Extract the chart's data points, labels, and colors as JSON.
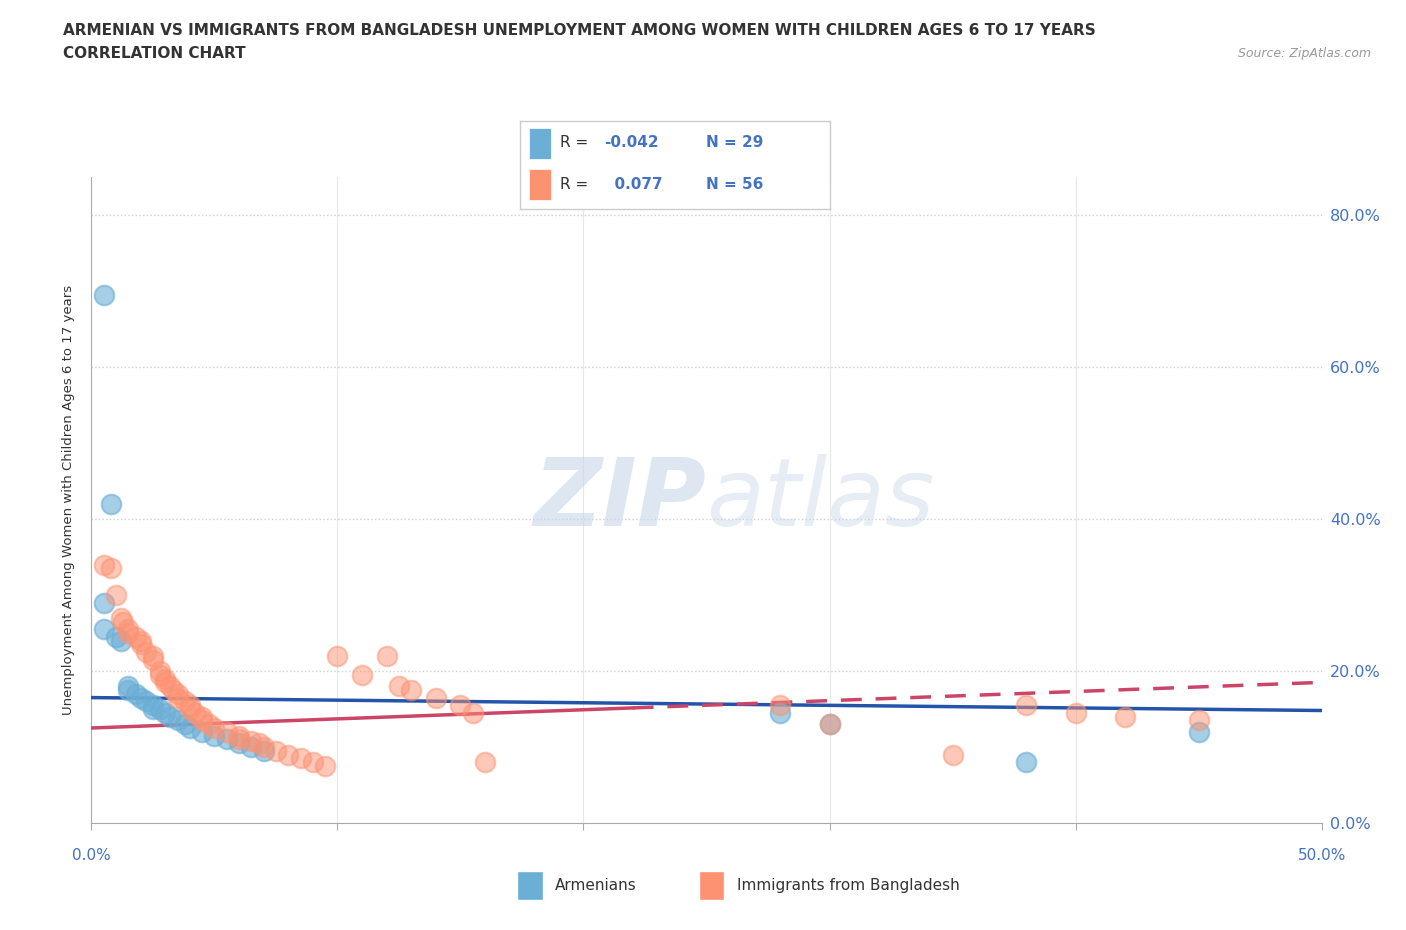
{
  "title_line1": "ARMENIAN VS IMMIGRANTS FROM BANGLADESH UNEMPLOYMENT AMONG WOMEN WITH CHILDREN AGES 6 TO 17 YEARS",
  "title_line2": "CORRELATION CHART",
  "source_text": "Source: ZipAtlas.com",
  "ylabel_label": "Unemployment Among Women with Children Ages 6 to 17 years",
  "xlim": [
    0.0,
    0.5
  ],
  "ylim": [
    0.0,
    0.85
  ],
  "armenian_R": -0.042,
  "armenian_N": 29,
  "bangladesh_R": 0.077,
  "bangladesh_N": 56,
  "armenian_color": "#6baed6",
  "bangladesh_color": "#fc9272",
  "armenian_line_color": "#2255aa",
  "bangladesh_line_color": "#cc4466",
  "armenian_scatter": [
    [
      0.005,
      0.695
    ],
    [
      0.008,
      0.42
    ],
    [
      0.005,
      0.29
    ],
    [
      0.005,
      0.255
    ],
    [
      0.01,
      0.245
    ],
    [
      0.012,
      0.24
    ],
    [
      0.015,
      0.18
    ],
    [
      0.015,
      0.175
    ],
    [
      0.018,
      0.17
    ],
    [
      0.02,
      0.165
    ],
    [
      0.022,
      0.16
    ],
    [
      0.025,
      0.155
    ],
    [
      0.025,
      0.15
    ],
    [
      0.028,
      0.15
    ],
    [
      0.03,
      0.145
    ],
    [
      0.032,
      0.14
    ],
    [
      0.035,
      0.135
    ],
    [
      0.038,
      0.13
    ],
    [
      0.04,
      0.125
    ],
    [
      0.045,
      0.12
    ],
    [
      0.05,
      0.115
    ],
    [
      0.055,
      0.11
    ],
    [
      0.06,
      0.105
    ],
    [
      0.065,
      0.1
    ],
    [
      0.07,
      0.095
    ],
    [
      0.28,
      0.145
    ],
    [
      0.3,
      0.13
    ],
    [
      0.38,
      0.08
    ],
    [
      0.45,
      0.12
    ]
  ],
  "bangladesh_scatter": [
    [
      0.005,
      0.34
    ],
    [
      0.008,
      0.335
    ],
    [
      0.01,
      0.3
    ],
    [
      0.012,
      0.27
    ],
    [
      0.013,
      0.265
    ],
    [
      0.015,
      0.255
    ],
    [
      0.015,
      0.25
    ],
    [
      0.018,
      0.245
    ],
    [
      0.02,
      0.24
    ],
    [
      0.02,
      0.235
    ],
    [
      0.022,
      0.225
    ],
    [
      0.025,
      0.22
    ],
    [
      0.025,
      0.215
    ],
    [
      0.028,
      0.2
    ],
    [
      0.028,
      0.195
    ],
    [
      0.03,
      0.19
    ],
    [
      0.03,
      0.185
    ],
    [
      0.032,
      0.18
    ],
    [
      0.033,
      0.175
    ],
    [
      0.035,
      0.17
    ],
    [
      0.035,
      0.165
    ],
    [
      0.038,
      0.16
    ],
    [
      0.04,
      0.155
    ],
    [
      0.04,
      0.15
    ],
    [
      0.042,
      0.145
    ],
    [
      0.045,
      0.14
    ],
    [
      0.045,
      0.135
    ],
    [
      0.048,
      0.13
    ],
    [
      0.05,
      0.125
    ],
    [
      0.055,
      0.12
    ],
    [
      0.06,
      0.115
    ],
    [
      0.06,
      0.11
    ],
    [
      0.065,
      0.108
    ],
    [
      0.068,
      0.105
    ],
    [
      0.07,
      0.1
    ],
    [
      0.075,
      0.095
    ],
    [
      0.08,
      0.09
    ],
    [
      0.085,
      0.085
    ],
    [
      0.09,
      0.08
    ],
    [
      0.095,
      0.075
    ],
    [
      0.1,
      0.22
    ],
    [
      0.11,
      0.195
    ],
    [
      0.12,
      0.22
    ],
    [
      0.125,
      0.18
    ],
    [
      0.13,
      0.175
    ],
    [
      0.14,
      0.165
    ],
    [
      0.15,
      0.155
    ],
    [
      0.155,
      0.145
    ],
    [
      0.16,
      0.08
    ],
    [
      0.28,
      0.155
    ],
    [
      0.3,
      0.13
    ],
    [
      0.35,
      0.09
    ],
    [
      0.38,
      0.155
    ],
    [
      0.4,
      0.145
    ],
    [
      0.42,
      0.14
    ],
    [
      0.45,
      0.135
    ]
  ],
  "watermark_zip": "ZIP",
  "watermark_atlas": "atlas",
  "grid_color": "#d0d0d0",
  "background_color": "#ffffff"
}
